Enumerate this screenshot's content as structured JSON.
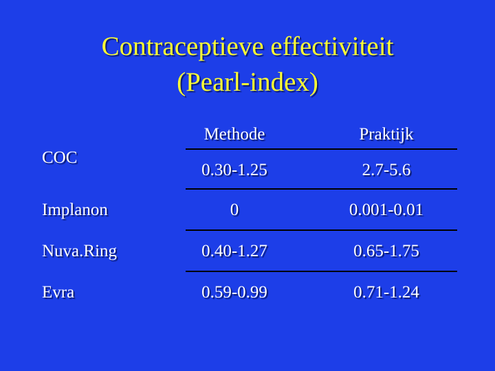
{
  "slide": {
    "title_lines": [
      "Contraceptieve effectiviteit",
      "(Pearl-index)"
    ]
  },
  "table": {
    "columns": [
      "",
      "Methode",
      "Praktijk"
    ],
    "rows": [
      {
        "label": "COC",
        "methode": "0.30-1.25",
        "praktijk": "2.7-5.6"
      },
      {
        "label": "Implanon",
        "methode": "0",
        "praktijk": "0.001-0.01"
      },
      {
        "label": "Nuva.Ring",
        "methode": "0.40-1.27",
        "praktijk": "0.65-1.75"
      },
      {
        "label": "Evra",
        "methode": "0.59-0.99",
        "praktijk": "0.71-1.24"
      }
    ]
  },
  "colors": {
    "background": "#1d3ee8",
    "title": "#ffff33",
    "text": "#ffffff",
    "rules": "#000000"
  }
}
